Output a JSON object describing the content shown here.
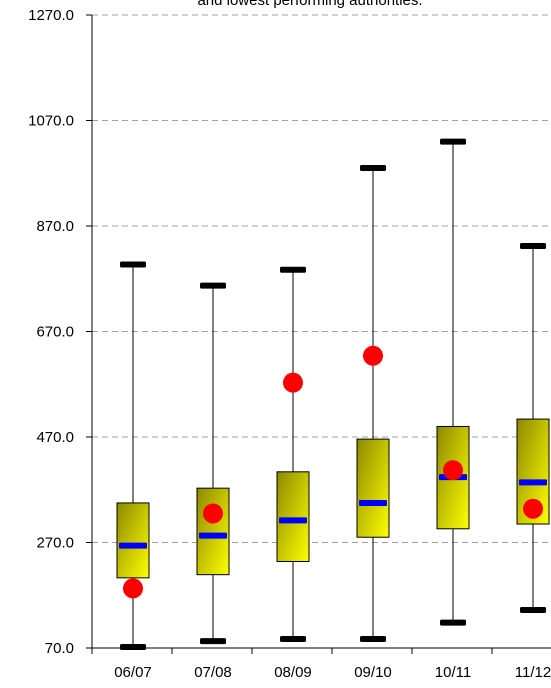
{
  "chart_data": {
    "type": "box",
    "title": "and lowest performing authorities.",
    "xlabel": "",
    "ylabel": "",
    "categories": [
      "06/07",
      "07/08",
      "08/09",
      "09/10",
      "10/11",
      "11/12"
    ],
    "y_tick_labels": [
      "70.0",
      "270.0",
      "470.0",
      "670.0",
      "870.0",
      "1070.0",
      "1270.0"
    ],
    "ylim": [
      70,
      1270
    ],
    "grid": "horizontal dashed",
    "legend": "none",
    "boxes": [
      {
        "category": "06/07",
        "min": 72,
        "q1": 203,
        "median": 264,
        "q3": 345,
        "max": 797,
        "marker": 183
      },
      {
        "category": "07/08",
        "min": 83,
        "q1": 209,
        "median": 283,
        "q3": 373,
        "max": 757,
        "marker": 325
      },
      {
        "category": "08/09",
        "min": 87,
        "q1": 234,
        "median": 312,
        "q3": 404,
        "max": 787,
        "marker": 573
      },
      {
        "category": "09/10",
        "min": 87,
        "q1": 280,
        "median": 345,
        "q3": 466,
        "max": 980,
        "marker": 624
      },
      {
        "category": "10/11",
        "min": 118,
        "q1": 296,
        "median": 394,
        "q3": 490,
        "max": 1030,
        "marker": 407
      },
      {
        "category": "11/12",
        "min": 142,
        "q1": 305,
        "median": 384,
        "q3": 504,
        "max": 832,
        "marker": 334
      }
    ],
    "colors": {
      "box_fill_top": "#8c8a00",
      "box_fill_bottom": "#ffff00",
      "median": "#0000ff",
      "marker": "#ff0000",
      "whisker_cap": "#000000",
      "gridline": "#a0a0a0"
    }
  }
}
